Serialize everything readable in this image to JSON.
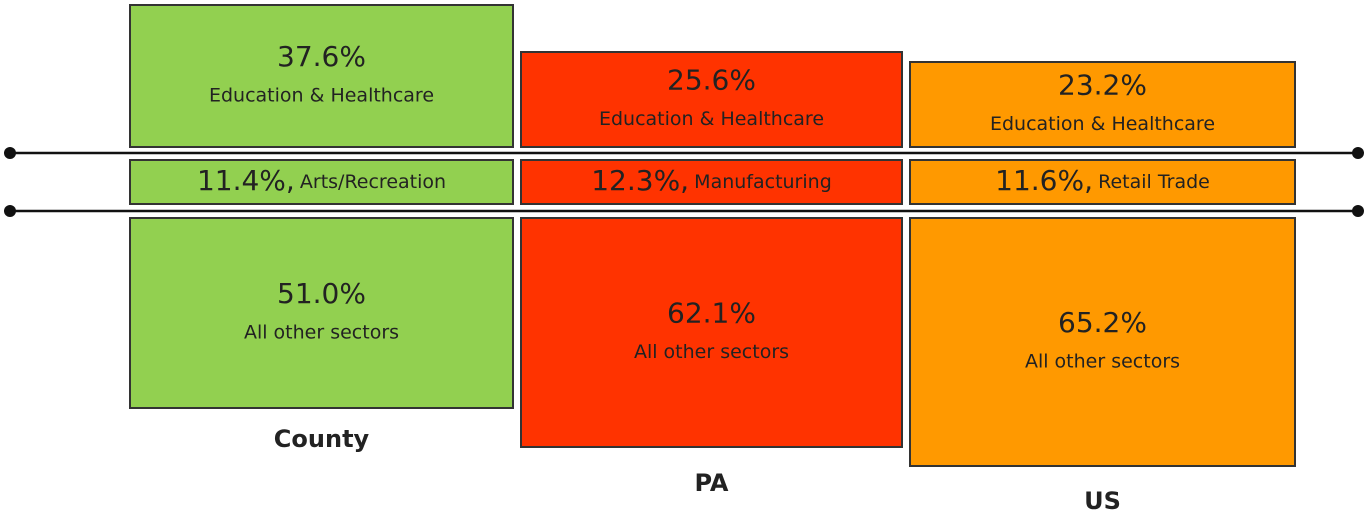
{
  "columns": [
    {
      "name": "County",
      "segments": [
        {
          "value": "37.6%",
          "label": "Education & Healthcare"
        },
        {
          "value": "11.4%,",
          "label": "Arts/Recreation"
        },
        {
          "value": "51.0%",
          "label": "All other sectors"
        }
      ]
    },
    {
      "name": "PA",
      "segments": [
        {
          "value": "25.6%",
          "label": "Education & Healthcare"
        },
        {
          "value": "12.3%,",
          "label": "Manufacturing"
        },
        {
          "value": "62.1%",
          "label": "All other sectors"
        }
      ]
    },
    {
      "name": "US",
      "segments": [
        {
          "value": "23.2%",
          "label": "Education & Healthcare"
        },
        {
          "value": "11.6%,",
          "label": "Retail Trade"
        },
        {
          "value": "65.2%",
          "label": "All other sectors"
        }
      ]
    }
  ]
}
